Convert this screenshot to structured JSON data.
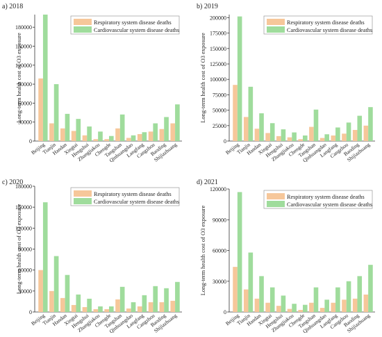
{
  "colors": {
    "respiratory": "#f6c79a",
    "cardiovascular": "#9fdc9c",
    "axis": "#333333"
  },
  "chart_data": [
    {
      "panel_label": "a) 2018",
      "type": "bar",
      "ylabel": "Long-term health cost of O3 exposure",
      "ylim": [
        0,
        200000
      ],
      "yticks": [
        "0",
        "30000",
        "60000",
        "90000",
        "120000",
        "150000",
        "180000"
      ],
      "ytick_values": [
        0,
        30000,
        60000,
        90000,
        120000,
        150000,
        180000
      ],
      "categories": [
        "Beijing",
        "Tianjin",
        "Handan",
        "Xingtai",
        "Hengshui",
        "Zhangjiakou",
        "Chengde",
        "Tangshan",
        "Qinhuangdao",
        "Langfang",
        "Cangzhou",
        "Baoding",
        "Shijiazhuang"
      ],
      "series": [
        {
          "name": "Respiratory system disease deaths",
          "values": [
            99000,
            28000,
            20000,
            16000,
            9000,
            3000,
            3000,
            20000,
            5000,
            11000,
            15000,
            19000,
            28000
          ]
        },
        {
          "name": "Cardiovascular system disease deaths",
          "values": [
            200000,
            90000,
            43000,
            35000,
            23000,
            15000,
            8000,
            42000,
            9000,
            14000,
            28000,
            38000,
            58000
          ]
        }
      ],
      "legend": "top-right"
    },
    {
      "panel_label": "b) 2019",
      "type": "bar",
      "ylabel": "Long-term health cost of O3 exposure",
      "ylim": [
        0,
        205000
      ],
      "yticks": [
        "0",
        "25000",
        "50000",
        "75000",
        "100000",
        "125000",
        "150000",
        "175000",
        "200000"
      ],
      "ytick_values": [
        0,
        25000,
        50000,
        75000,
        100000,
        125000,
        150000,
        175000,
        200000
      ],
      "categories": [
        "Beijing",
        "Tianjin",
        "Handan",
        "Xingtai",
        "Hengshui",
        "Zhangjiakou",
        "Chengde",
        "Tangshan",
        "Qinhuangdao",
        "Langfang",
        "Cangzhou",
        "Baoding",
        "Shijiazhuang"
      ],
      "series": [
        {
          "name": "Respiratory system disease deaths",
          "values": [
            91000,
            39000,
            20000,
            13000,
            8000,
            6000,
            3000,
            23000,
            5000,
            9000,
            12000,
            18000,
            25000
          ]
        },
        {
          "name": "Cardiovascular system disease deaths",
          "values": [
            202000,
            88000,
            45000,
            29000,
            19000,
            14000,
            9000,
            51000,
            11000,
            22000,
            30000,
            41000,
            55000
          ]
        }
      ],
      "legend": "top-right"
    },
    {
      "panel_label": "c) 2020",
      "type": "bar",
      "ylabel": "Long-term health cost of O3 exposure",
      "ylim": [
        0,
        180000
      ],
      "yticks": [
        "0",
        "30000",
        "60000",
        "90000",
        "120000",
        "150000",
        "180000"
      ],
      "ytick_values": [
        0,
        30000,
        60000,
        90000,
        120000,
        150000,
        180000
      ],
      "categories": [
        "Beijing",
        "Tianjin",
        "Handan",
        "Xingtai",
        "Hengshui",
        "Zhangjiakou",
        "Chengde",
        "Tangshan",
        "Qinhuangdao",
        "Langfang",
        "Cangzhou",
        "Baoding",
        "Shijiazhuang"
      ],
      "series": [
        {
          "name": "Respiratory system disease deaths",
          "values": [
            60000,
            30000,
            20000,
            10000,
            7000,
            4000,
            4000,
            18000,
            5000,
            8000,
            14000,
            14000,
            16000
          ]
        },
        {
          "name": "Cardiovascular system disease deaths",
          "values": [
            157000,
            80000,
            53000,
            25000,
            19000,
            8000,
            8000,
            36000,
            14000,
            24000,
            37000,
            34000,
            43000
          ]
        }
      ],
      "legend": "top-right"
    },
    {
      "panel_label": "d) 2021",
      "type": "bar",
      "ylabel": "Long-term health cost of O3 exposure",
      "ylim": [
        0,
        120000
      ],
      "yticks": [
        "0",
        "30000",
        "60000",
        "90000",
        "120000"
      ],
      "ytick_values": [
        0,
        30000,
        60000,
        90000,
        120000
      ],
      "categories": [
        "Beijing",
        "Tianjin",
        "Handan",
        "Xingtai",
        "Hengshui",
        "Zhangjiakou",
        "Chengde",
        "Tangshan",
        "Qinhuangdao",
        "Langfang",
        "Cangzhou",
        "Baoding",
        "Shijiazhuang"
      ],
      "series": [
        {
          "name": "Respiratory system disease deaths",
          "values": [
            44000,
            22000,
            13000,
            9000,
            6000,
            3000,
            2000,
            9000,
            4000,
            9000,
            12000,
            13000,
            17000
          ]
        },
        {
          "name": "Cardiovascular system disease deaths",
          "values": [
            117000,
            58000,
            35000,
            24000,
            16000,
            8000,
            7000,
            24000,
            12000,
            24000,
            30000,
            35000,
            46000
          ]
        }
      ],
      "legend": "top-right"
    }
  ]
}
